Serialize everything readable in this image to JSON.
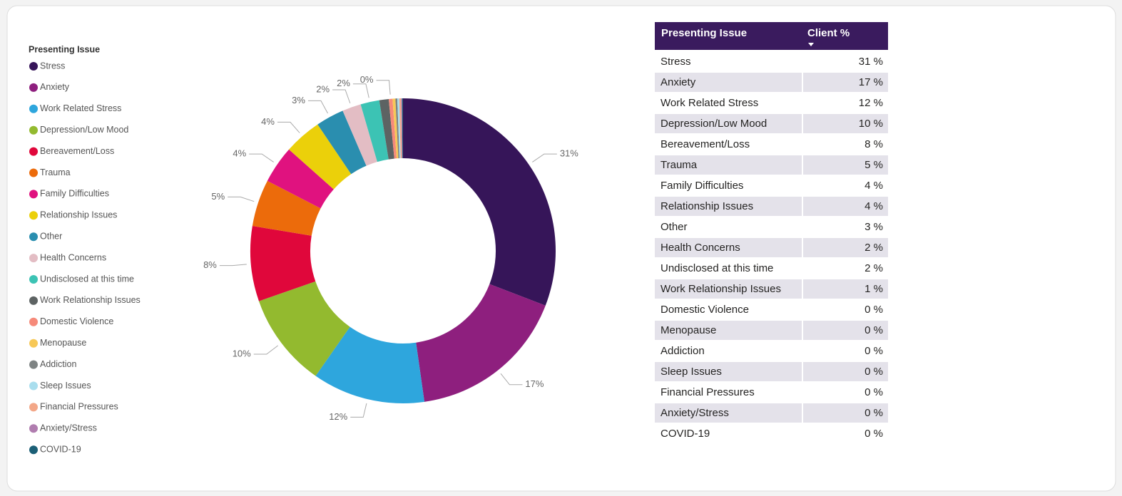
{
  "chart_data": {
    "type": "pie",
    "donut": true,
    "legend_title": "Presenting Issue",
    "legend_position": "left",
    "categories": [
      "Stress",
      "Anxiety",
      "Work Related Stress",
      "Depression/Low Mood",
      "Bereavement/Loss",
      "Trauma",
      "Family Difficulties",
      "Relationship Issues",
      "Other",
      "Health Concerns",
      "Undisclosed at this time",
      "Work Relationship Issues",
      "Domestic Violence",
      "Menopause",
      "Addiction",
      "Sleep Issues",
      "Financial Pressures",
      "Anxiety/Stress",
      "COVID-19"
    ],
    "values": [
      31,
      17,
      12,
      10,
      8,
      5,
      4,
      4,
      3,
      2,
      2,
      1,
      0.4,
      0.3,
      0.2,
      0.2,
      0.2,
      0.1,
      0.1
    ],
    "value_labels": [
      "31%",
      "17%",
      "12%",
      "10%",
      "8%",
      "5%",
      "4%",
      "4%",
      "3%",
      "2%",
      "2%",
      null,
      "0%",
      null,
      null,
      null,
      null,
      null,
      null
    ],
    "colors": [
      "#361559",
      "#8e1f7e",
      "#2ea6dd",
      "#93ba2f",
      "#e0073b",
      "#ec6b0b",
      "#e0127f",
      "#ebd00a",
      "#2a8eaf",
      "#e3bdc4",
      "#3cc3b4",
      "#5d6363",
      "#f68a7a",
      "#f7c857",
      "#7e8383",
      "#a9deee",
      "#f3a788",
      "#b07daf",
      "#1b5f76"
    ]
  },
  "table": {
    "header": [
      "Presenting Issue",
      "Client %"
    ],
    "rows": [
      [
        "Stress",
        "31 %"
      ],
      [
        "Anxiety",
        "17 %"
      ],
      [
        "Work Related Stress",
        "12 %"
      ],
      [
        "Depression/Low Mood",
        "10 %"
      ],
      [
        "Bereavement/Loss",
        "8 %"
      ],
      [
        "Trauma",
        "5 %"
      ],
      [
        "Family Difficulties",
        "4 %"
      ],
      [
        "Relationship Issues",
        "4 %"
      ],
      [
        "Other",
        "3 %"
      ],
      [
        "Health Concerns",
        "2 %"
      ],
      [
        "Undisclosed at this time",
        "2 %"
      ],
      [
        "Work Relationship Issues",
        "1 %"
      ],
      [
        "Domestic Violence",
        "0 %"
      ],
      [
        "Menopause",
        "0 %"
      ],
      [
        "Addiction",
        "0 %"
      ],
      [
        "Sleep Issues",
        "0 %"
      ],
      [
        "Financial Pressures",
        "0 %"
      ],
      [
        "Anxiety/Stress",
        "0 %"
      ],
      [
        "COVID-19",
        "0 %"
      ]
    ]
  }
}
